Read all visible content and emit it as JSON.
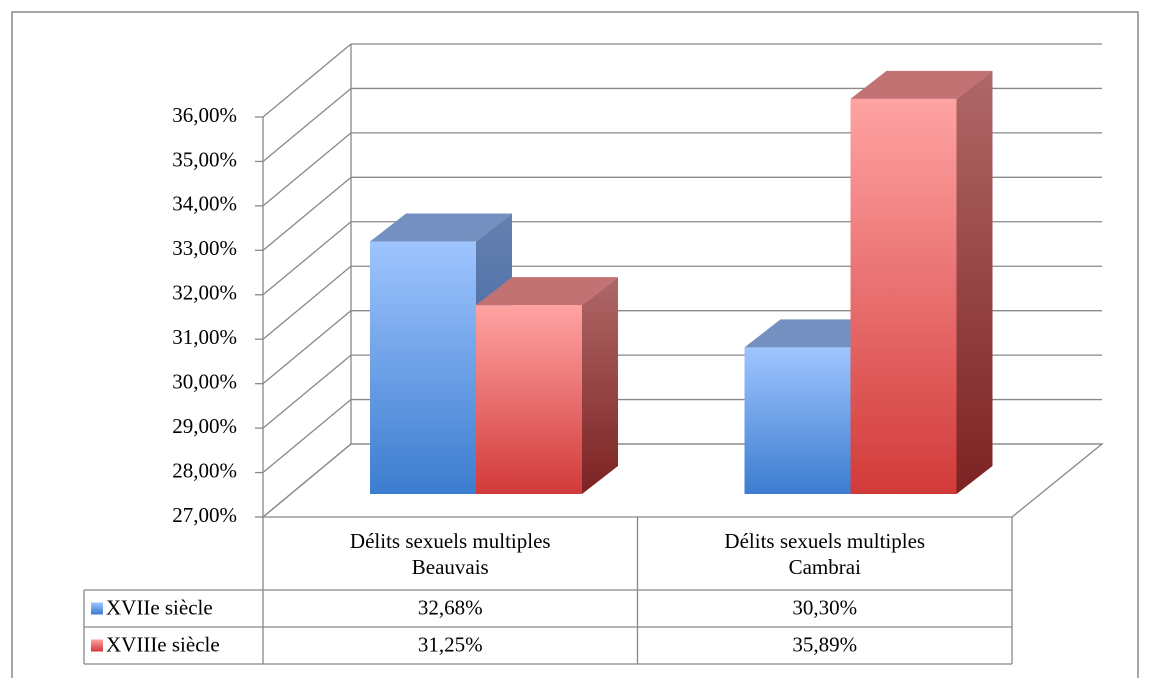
{
  "chart_data": {
    "type": "bar3d",
    "categories": [
      "Délits sexuels multiples\nBeauvais",
      "Délits sexuels multiples\nCambrai"
    ],
    "series": [
      {
        "name": "XVIIe siècle",
        "color": "#4a86d8",
        "values": [
          32.68,
          30.3
        ],
        "value_labels": [
          "32,68%",
          "30,30%"
        ]
      },
      {
        "name": "XVIIIe siècle",
        "color": "#d94444",
        "values": [
          31.25,
          35.89
        ],
        "value_labels": [
          "31,25%",
          "35,89%"
        ]
      }
    ],
    "ylim": [
      27,
      36
    ],
    "yticks": [
      {
        "value": 27,
        "label": "27,00%"
      },
      {
        "value": 28,
        "label": "28,00%"
      },
      {
        "value": 29,
        "label": "29,00%"
      },
      {
        "value": 30,
        "label": "30,00%"
      },
      {
        "value": 31,
        "label": "31,00%"
      },
      {
        "value": 32,
        "label": "32,00%"
      },
      {
        "value": 33,
        "label": "33,00%"
      },
      {
        "value": 34,
        "label": "34,00%"
      },
      {
        "value": 35,
        "label": "35,00%"
      },
      {
        "value": 36,
        "label": "36,00%"
      }
    ],
    "grid": true,
    "data_table": true
  }
}
